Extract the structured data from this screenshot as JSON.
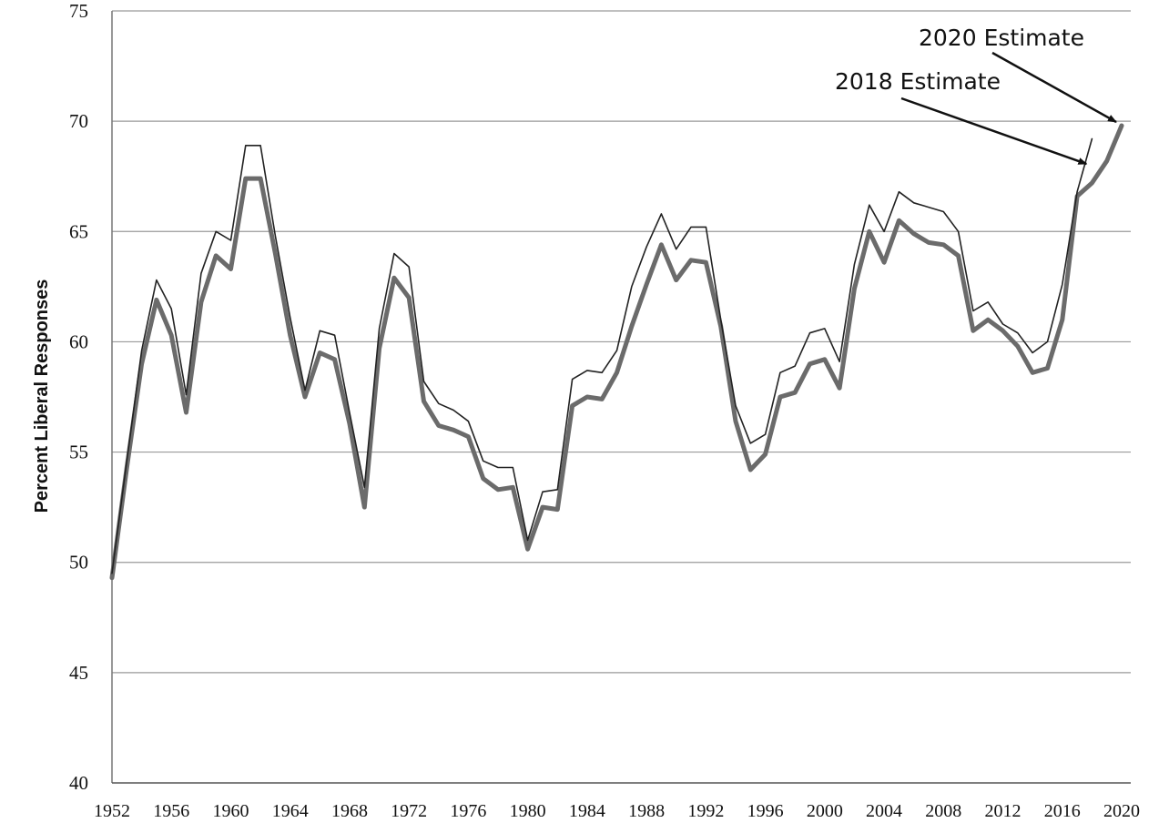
{
  "chart_data": {
    "type": "line",
    "ylabel": "Percent Liberal Responses",
    "ylim": [
      40,
      75
    ],
    "yticks": [
      "40",
      "45",
      "50",
      "55",
      "60",
      "65",
      "70",
      "75"
    ],
    "xlim": [
      1952,
      2020
    ],
    "xticks": [
      "1952",
      "1956",
      "1960",
      "1964",
      "1968",
      "1972",
      "1976",
      "1980",
      "1984",
      "1988",
      "1992",
      "1996",
      "2000",
      "2004",
      "2008",
      "2012",
      "2016",
      "2020"
    ],
    "grid": "horizontal",
    "annotations": [
      {
        "text": "2020 Estimate",
        "target": [
          2020,
          69.8
        ]
      },
      {
        "text": "2018 Estimate",
        "target": [
          2018,
          67.9
        ]
      }
    ],
    "series": [
      {
        "style": "thick",
        "color": "#6b6b6b",
        "x": [
          1952,
          1953,
          1954,
          1955,
          1956,
          1957,
          1958,
          1959,
          1960,
          1961,
          1962,
          1963,
          1964,
          1965,
          1966,
          1967,
          1968,
          1969,
          1970,
          1971,
          1972,
          1973,
          1974,
          1975,
          1976,
          1977,
          1978,
          1979,
          1980,
          1981,
          1982,
          1983,
          1984,
          1985,
          1986,
          1987,
          1988,
          1989,
          1990,
          1991,
          1992,
          1993,
          1994,
          1995,
          1996,
          1997,
          1998,
          1999,
          2000,
          2001,
          2002,
          2003,
          2004,
          2005,
          2006,
          2007,
          2008,
          2009,
          2010,
          2011,
          2012,
          2013,
          2014,
          2015,
          2016,
          2017,
          2018,
          2019,
          2020
        ],
        "y": [
          49.3,
          54.3,
          59.0,
          61.9,
          60.3,
          56.8,
          61.8,
          63.9,
          63.3,
          67.4,
          67.4,
          64.0,
          60.3,
          57.5,
          59.5,
          59.2,
          56.3,
          52.5,
          59.7,
          62.9,
          62.0,
          57.3,
          56.2,
          56.0,
          55.7,
          53.8,
          53.3,
          53.4,
          50.6,
          52.5,
          52.4,
          57.1,
          57.5,
          57.4,
          58.6,
          60.7,
          62.6,
          64.4,
          62.8,
          63.7,
          63.6,
          60.7,
          56.4,
          54.2,
          54.9,
          57.5,
          57.7,
          59.0,
          59.2,
          57.9,
          62.4,
          65.0,
          63.6,
          65.5,
          64.9,
          64.5,
          64.4,
          63.9,
          60.5,
          61.0,
          60.5,
          59.8,
          58.6,
          58.8,
          61.0,
          66.6,
          67.2,
          68.2,
          69.8
        ]
      },
      {
        "style": "thin",
        "color": "#222222",
        "x": [
          1952,
          1953,
          1954,
          1955,
          1956,
          1957,
          1958,
          1959,
          1960,
          1961,
          1962,
          1963,
          1964,
          1965,
          1966,
          1967,
          1968,
          1969,
          1970,
          1971,
          1972,
          1973,
          1974,
          1975,
          1976,
          1977,
          1978,
          1979,
          1980,
          1981,
          1982,
          1983,
          1984,
          1985,
          1986,
          1987,
          1988,
          1989,
          1990,
          1991,
          1992,
          1993,
          1994,
          1995,
          1996,
          1997,
          1998,
          1999,
          2000,
          2001,
          2002,
          2003,
          2004,
          2005,
          2006,
          2007,
          2008,
          2009,
          2010,
          2011,
          2012,
          2013,
          2014,
          2015,
          2016,
          2017,
          2018
        ],
        "y": [
          49.5,
          54.6,
          59.6,
          62.8,
          61.5,
          57.6,
          63.1,
          65.0,
          64.6,
          68.9,
          68.9,
          64.8,
          61.1,
          57.8,
          60.5,
          60.3,
          56.8,
          53.4,
          60.6,
          64.0,
          63.4,
          58.2,
          57.2,
          56.9,
          56.4,
          54.6,
          54.3,
          54.3,
          51.0,
          53.2,
          53.3,
          58.3,
          58.7,
          58.6,
          59.6,
          62.5,
          64.3,
          65.8,
          64.2,
          65.2,
          65.2,
          61.0,
          57.1,
          55.4,
          55.8,
          58.6,
          58.9,
          60.4,
          60.6,
          59.1,
          63.5,
          66.2,
          65.0,
          66.8,
          66.3,
          66.1,
          65.9,
          65.0,
          61.4,
          61.8,
          60.8,
          60.4,
          59.5,
          60.0,
          62.6,
          66.8,
          69.2
        ]
      }
    ]
  }
}
